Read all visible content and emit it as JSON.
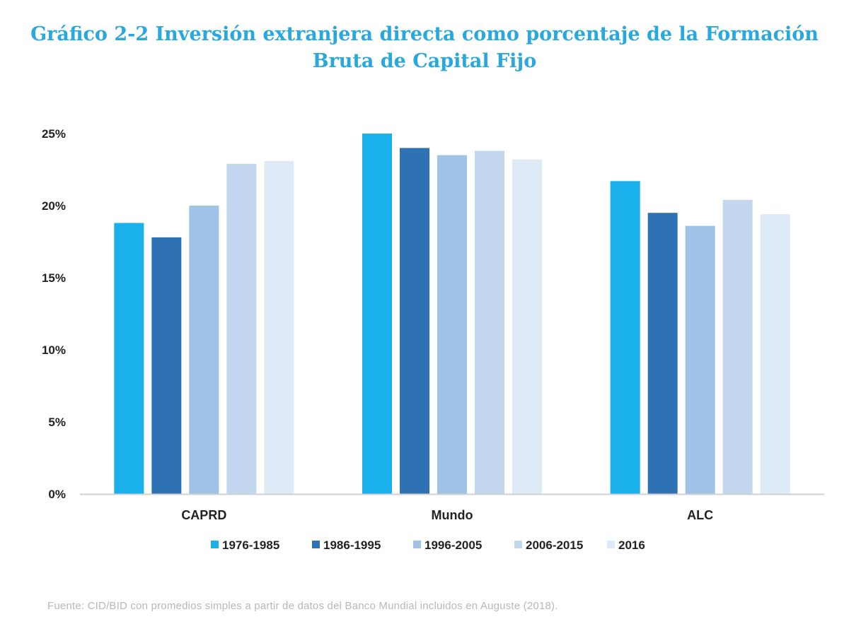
{
  "title_line1": "Gráfico 2-2 Inversión extranjera directa como porcentaje de la Formación",
  "title_line2": "Bruta de Capital Fijo",
  "footer": "Fuente: CID/BID con promedios simples a partir de datos del Banco Mundial incluidos en Auguste (2018).",
  "colors": {
    "title": "#29a8de",
    "axis": "#d0d0d0",
    "footer": "#b8b8b8"
  },
  "chart_data": {
    "type": "bar",
    "categories": [
      "CAPRD",
      "Mundo",
      "ALC"
    ],
    "series": [
      {
        "name": "1976-1985",
        "color": "#1ab0ec",
        "values": [
          18.8,
          25.0,
          21.7
        ]
      },
      {
        "name": "1986-1995",
        "color": "#2f72b4",
        "values": [
          17.8,
          24.0,
          19.5
        ]
      },
      {
        "name": "1996-2005",
        "color": "#9fc3e6",
        "values": [
          20.0,
          23.5,
          18.6
        ]
      },
      {
        "name": "2006-2015",
        "color": "#c2d7ee",
        "values": [
          22.9,
          23.8,
          20.4
        ]
      },
      {
        "name": "2016",
        "color": "#deeaf6",
        "values": [
          23.1,
          23.2,
          19.4
        ]
      }
    ],
    "ylim": [
      0,
      25
    ],
    "yticks": [
      "0%",
      "5%",
      "10%",
      "15%",
      "20%",
      "25%"
    ],
    "ytick_values": [
      0,
      5,
      10,
      15,
      20,
      25
    ],
    "grid": false,
    "legend_position": "bottom"
  }
}
